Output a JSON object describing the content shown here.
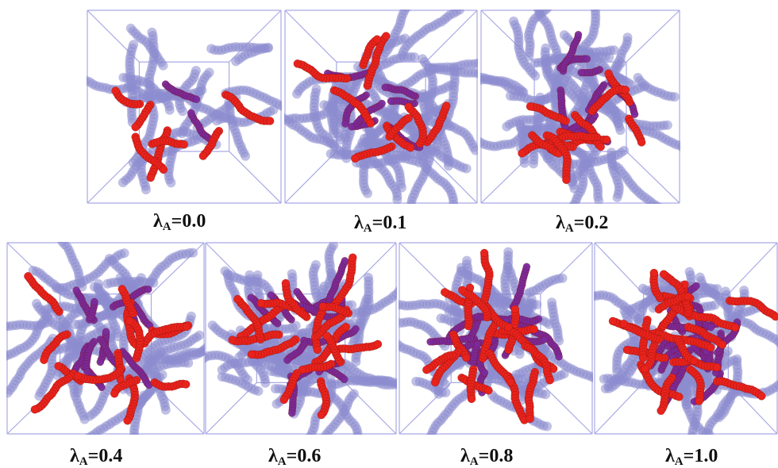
{
  "colors": {
    "background": "#ffffff",
    "box_frame": "#a9a9e6",
    "solvent_chains": "#8c8ccf",
    "solute_chains": "#e8231c",
    "mixed_chains": "#7a2a9a"
  },
  "panels": [
    {
      "symbol": "λ",
      "subscript": "A",
      "value_text": "=0.0",
      "lambda_A": 0.0
    },
    {
      "symbol": "λ",
      "subscript": "A",
      "value_text": "=0.1",
      "lambda_A": 0.1
    },
    {
      "symbol": "λ",
      "subscript": "A",
      "value_text": "=0.2",
      "lambda_A": 0.2
    },
    {
      "symbol": "λ",
      "subscript": "A",
      "value_text": "=0.4",
      "lambda_A": 0.4
    },
    {
      "symbol": "λ",
      "subscript": "A",
      "value_text": "=0.6",
      "lambda_A": 0.6
    },
    {
      "symbol": "λ",
      "subscript": "A",
      "value_text": "=0.8",
      "lambda_A": 0.8
    },
    {
      "symbol": "λ",
      "subscript": "A",
      "value_text": "=1.0",
      "lambda_A": 1.0
    }
  ]
}
